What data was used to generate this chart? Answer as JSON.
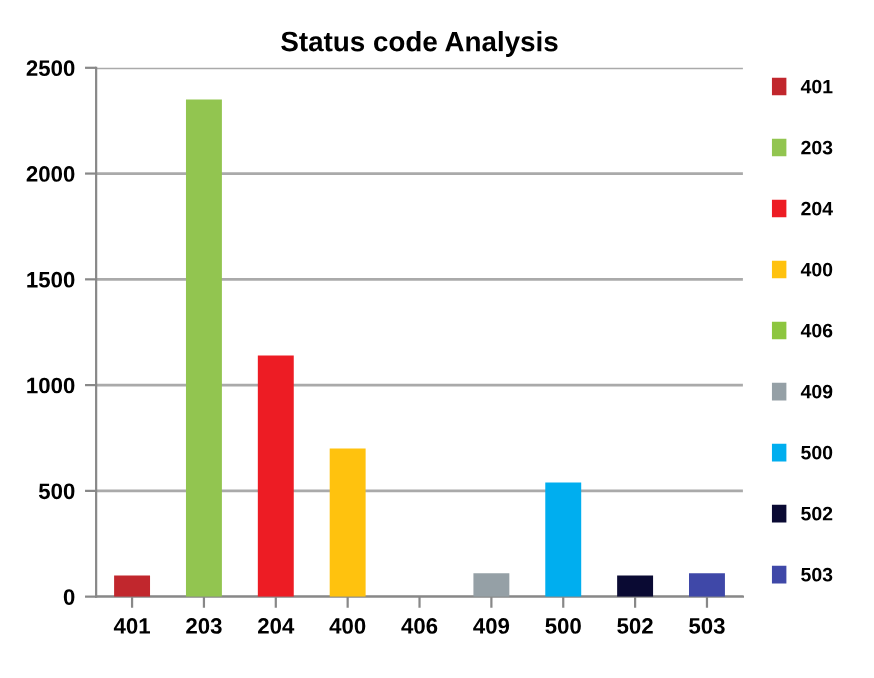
{
  "chart_data": {
    "type": "bar",
    "title": "Status code Analysis",
    "categories": [
      "401",
      "203",
      "204",
      "400",
      "406",
      "409",
      "500",
      "502",
      "503"
    ],
    "series": [
      {
        "name": "401",
        "color": "#c1272d",
        "values": [
          100,
          null,
          null,
          null,
          null,
          null,
          null,
          null,
          null
        ]
      },
      {
        "name": "203",
        "color": "#92c550",
        "values": [
          null,
          2350,
          null,
          null,
          null,
          null,
          null,
          null,
          null
        ]
      },
      {
        "name": "204",
        "color": "#ed1c24",
        "values": [
          null,
          null,
          1140,
          null,
          null,
          null,
          null,
          null,
          null
        ]
      },
      {
        "name": "400",
        "color": "#ffc20e",
        "values": [
          null,
          null,
          null,
          700,
          null,
          null,
          null,
          null,
          null
        ]
      },
      {
        "name": "406",
        "color": "#8dc63f",
        "values": [
          null,
          null,
          null,
          null,
          0,
          null,
          null,
          null,
          null
        ]
      },
      {
        "name": "409",
        "color": "#95a0a6",
        "values": [
          null,
          null,
          null,
          null,
          null,
          110,
          null,
          null,
          null
        ]
      },
      {
        "name": "500",
        "color": "#00aeef",
        "values": [
          null,
          null,
          null,
          null,
          null,
          null,
          540,
          null,
          null
        ]
      },
      {
        "name": "502",
        "color": "#0a0a33",
        "values": [
          null,
          null,
          null,
          null,
          null,
          null,
          null,
          100,
          null
        ]
      },
      {
        "name": "503",
        "color": "#3f48a8",
        "values": [
          null,
          null,
          null,
          null,
          null,
          null,
          null,
          null,
          110
        ]
      }
    ],
    "ylim": [
      0,
      2500
    ],
    "yticks": [
      0,
      500,
      1000,
      1500,
      2000,
      2500
    ],
    "grid": "y",
    "legend": "right"
  }
}
